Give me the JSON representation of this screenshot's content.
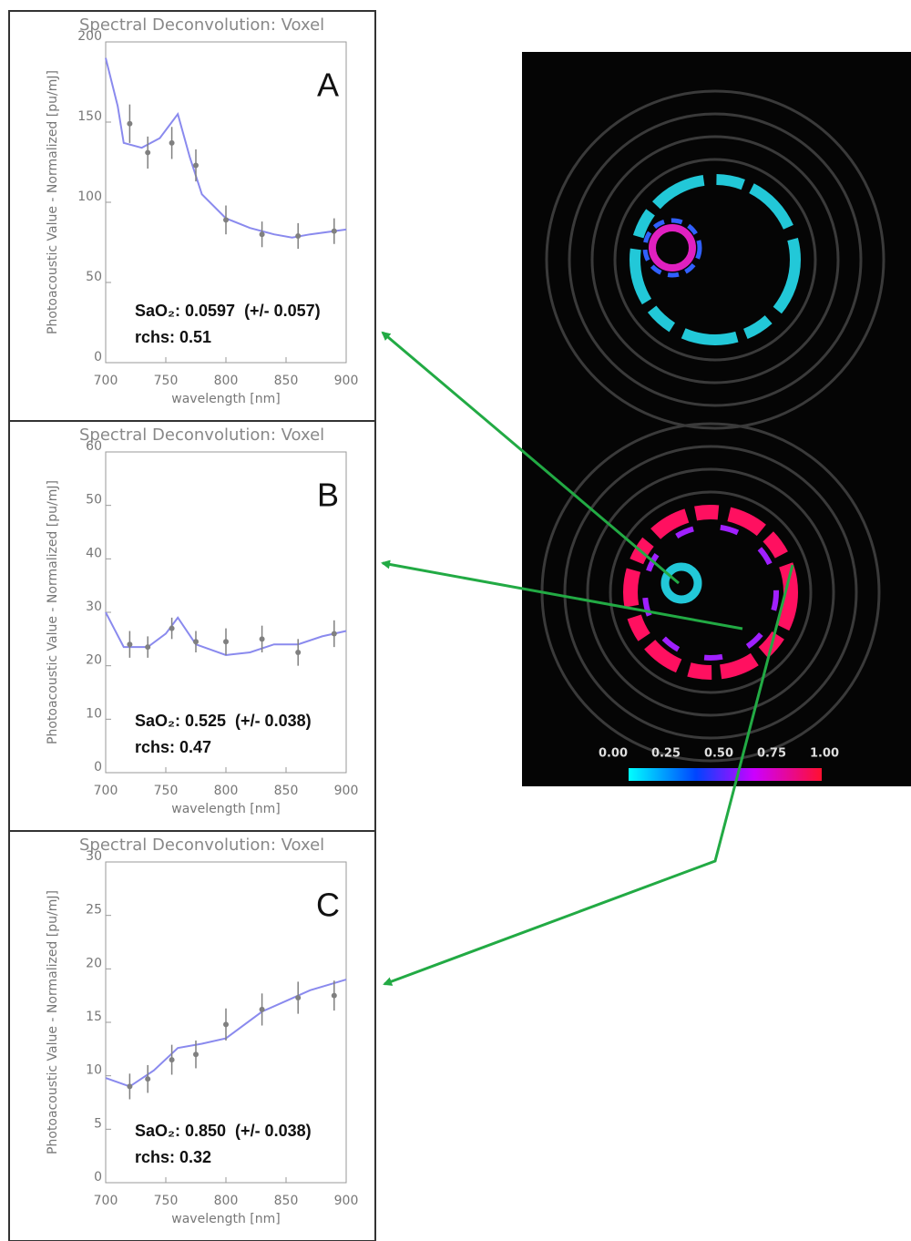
{
  "chart_data": [
    {
      "type": "line",
      "title": "Spectral Deconvolution: Voxel",
      "label": "A",
      "xlabel": "wavelength [nm]",
      "ylabel": "Photoacoustic Value - Normalized [pu/mJ]",
      "xlim": [
        700,
        900
      ],
      "xticks": [
        700,
        750,
        800,
        850,
        900
      ],
      "ylim": [
        0,
        200
      ],
      "yticks": [
        0,
        50,
        100,
        150,
        200
      ],
      "annotations": [
        "SaO₂: 0.0597  (+/- 0.057)",
        "rchs: 0.51"
      ],
      "series": [
        {
          "color": "#8a8aee",
          "x": [
            700,
            710,
            715,
            730,
            745,
            760,
            770,
            780,
            800,
            820,
            840,
            855,
            870,
            900
          ],
          "values": [
            190,
            160,
            137,
            134,
            140,
            155,
            128,
            105,
            90,
            84,
            80,
            78,
            80,
            83
          ]
        },
        {
          "color": "#808080",
          "x": [
            720,
            735,
            755,
            775,
            800,
            830,
            860,
            890
          ],
          "values": [
            149,
            131,
            137,
            123,
            89,
            80,
            79,
            82
          ],
          "errors": [
            12,
            10,
            10,
            10,
            9,
            8,
            8,
            8
          ]
        }
      ]
    },
    {
      "type": "line",
      "title": "Spectral Deconvolution: Voxel",
      "label": "B",
      "xlabel": "wavelength [nm]",
      "ylabel": "Photoacoustic Value - Normalized [pu/mJ]",
      "xlim": [
        700,
        900
      ],
      "xticks": [
        700,
        750,
        800,
        850,
        900
      ],
      "ylim": [
        0,
        60
      ],
      "yticks": [
        0,
        10,
        20,
        30,
        40,
        50,
        60
      ],
      "annotations": [
        "SaO₂: 0.525  (+/- 0.038)",
        "rchs: 0.47"
      ],
      "series": [
        {
          "color": "#8a8aee",
          "x": [
            700,
            715,
            735,
            750,
            760,
            775,
            800,
            820,
            840,
            860,
            880,
            900
          ],
          "values": [
            30,
            23.5,
            23.5,
            26,
            29,
            24,
            22,
            22.5,
            24,
            24,
            25.5,
            26.5
          ]
        },
        {
          "color": "#808080",
          "x": [
            720,
            735,
            755,
            775,
            800,
            830,
            860,
            890
          ],
          "values": [
            24,
            23.5,
            27,
            24.5,
            24.5,
            25,
            22.5,
            26
          ],
          "errors": [
            2.5,
            2,
            2,
            2,
            2.5,
            2.5,
            2.5,
            2.5
          ]
        }
      ]
    },
    {
      "type": "line",
      "title": "Spectral Deconvolution: Voxel",
      "label": "C",
      "xlabel": "wavelength [nm]",
      "ylabel": "Photoacoustic Value - Normalized [pu/mJ]",
      "xlim": [
        700,
        900
      ],
      "xticks": [
        700,
        750,
        800,
        850,
        900
      ],
      "ylim": [
        0,
        30
      ],
      "yticks": [
        0,
        5,
        10,
        15,
        20,
        25,
        30
      ],
      "annotations": [
        "SaO₂: 0.850  (+/- 0.038)",
        "rchs: 0.32"
      ],
      "series": [
        {
          "color": "#8a8aee",
          "x": [
            700,
            720,
            740,
            760,
            780,
            800,
            830,
            850,
            870,
            900
          ],
          "values": [
            9.8,
            9,
            10.5,
            12.6,
            13,
            13.5,
            16,
            17,
            18,
            19
          ]
        },
        {
          "color": "#808080",
          "x": [
            720,
            735,
            755,
            775,
            800,
            830,
            860,
            890
          ],
          "values": [
            9,
            9.7,
            11.5,
            12,
            14.8,
            16.2,
            17.3,
            17.5
          ],
          "errors": [
            1.2,
            1.3,
            1.4,
            1.3,
            1.5,
            1.5,
            1.5,
            1.4
          ]
        }
      ]
    }
  ],
  "image": {
    "colorbar_labels": [
      "0.00",
      "0.25",
      "0.50",
      "0.75",
      "1.00"
    ]
  }
}
